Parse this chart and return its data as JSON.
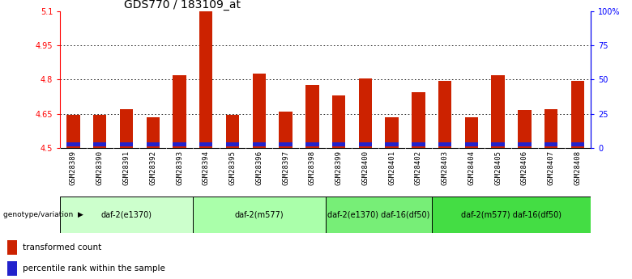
{
  "title": "GDS770 / 183109_at",
  "samples": [
    "GSM28389",
    "GSM28390",
    "GSM28391",
    "GSM28392",
    "GSM28393",
    "GSM28394",
    "GSM28395",
    "GSM28396",
    "GSM28397",
    "GSM28398",
    "GSM28399",
    "GSM28400",
    "GSM28401",
    "GSM28402",
    "GSM28403",
    "GSM28404",
    "GSM28405",
    "GSM28406",
    "GSM28407",
    "GSM28408"
  ],
  "transformed_counts": [
    4.645,
    4.645,
    4.67,
    4.635,
    4.82,
    5.1,
    4.645,
    4.825,
    4.66,
    4.775,
    4.73,
    4.805,
    4.635,
    4.745,
    4.795,
    4.635,
    4.82,
    4.665,
    4.67,
    4.795
  ],
  "percentile_ranks_pct": [
    10,
    12,
    14,
    10,
    12,
    12,
    12,
    14,
    12,
    12,
    10,
    12,
    10,
    14,
    12,
    14,
    12,
    12,
    12,
    10
  ],
  "ymin": 4.5,
  "ymax": 5.1,
  "y_ticks_left": [
    4.5,
    4.65,
    4.8,
    4.95,
    5.1
  ],
  "y_ticks_right_labels": [
    "0",
    "25",
    "50",
    "75",
    "100%"
  ],
  "bar_color": "#cc2200",
  "blue_color": "#2222cc",
  "groups": [
    {
      "label": "daf-2(e1370)",
      "start": 0,
      "end": 5,
      "color": "#ccffcc"
    },
    {
      "label": "daf-2(m577)",
      "start": 5,
      "end": 10,
      "color": "#aaffaa"
    },
    {
      "label": "daf-2(e1370) daf-16(df50)",
      "start": 10,
      "end": 14,
      "color": "#77ee77"
    },
    {
      "label": "daf-2(m577) daf-16(df50)",
      "start": 14,
      "end": 20,
      "color": "#44dd44"
    }
  ],
  "title_fontsize": 10,
  "tick_label_fontsize": 6.5,
  "group_label_fontsize": 7,
  "legend_label_fontsize": 7.5,
  "bar_width": 0.5
}
